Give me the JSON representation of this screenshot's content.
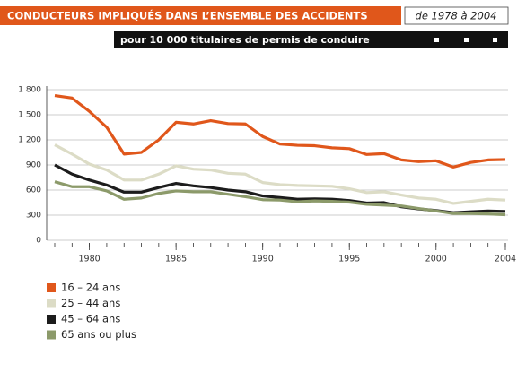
{
  "chart_data": {
    "type": "line",
    "title": "CONDUCTEURS IMPLIQUÉS DANS L’ENSEMBLE DES ACCIDENTS",
    "subtitle": "de 1978 à 2004",
    "caption": "pour 10 000 titulaires de permis de conduire",
    "x": [
      1978,
      1979,
      1980,
      1981,
      1982,
      1983,
      1984,
      1985,
      1986,
      1987,
      1988,
      1989,
      1990,
      1991,
      1992,
      1993,
      1994,
      1995,
      1996,
      1997,
      1998,
      1999,
      2000,
      2001,
      2002,
      2003,
      2004
    ],
    "xlim": [
      1978,
      2004
    ],
    "xticks": [
      1980,
      1985,
      1990,
      1995,
      2000,
      2004
    ],
    "ylim": [
      0,
      1800
    ],
    "yticks": [
      0,
      300,
      600,
      900,
      {
        "value": 1200,
        "label": "1 200"
      },
      {
        "value": 1500,
        "label": "1 500"
      },
      {
        "value": 1800,
        "label": "1 800"
      }
    ],
    "grid": true,
    "series": [
      {
        "name": "16 – 24 ans",
        "color": "#e0571b",
        "values": [
          1730,
          1700,
          1540,
          1350,
          1030,
          1050,
          1200,
          1410,
          1390,
          1430,
          1395,
          1390,
          1240,
          1150,
          1135,
          1130,
          1105,
          1095,
          1025,
          1035,
          960,
          940,
          950,
          875,
          930,
          960,
          965
        ]
      },
      {
        "name": "25 – 44 ans",
        "color": "#dcdcc6",
        "values": [
          1140,
          1030,
          910,
          840,
          720,
          720,
          790,
          890,
          850,
          840,
          800,
          790,
          690,
          665,
          655,
          650,
          645,
          615,
          570,
          580,
          540,
          505,
          490,
          440,
          465,
          490,
          480
        ]
      },
      {
        "name": "45 – 64 ans",
        "color": "#1c1c1c",
        "values": [
          900,
          790,
          720,
          660,
          575,
          575,
          630,
          680,
          650,
          630,
          600,
          580,
          530,
          510,
          490,
          495,
          490,
          475,
          445,
          450,
          400,
          375,
          355,
          330,
          340,
          350,
          345
        ]
      },
      {
        "name": "65 ans ou plus",
        "color": "#8c9a6a",
        "values": [
          700,
          640,
          640,
          590,
          490,
          505,
          560,
          590,
          580,
          580,
          550,
          520,
          485,
          480,
          460,
          470,
          465,
          455,
          430,
          420,
          410,
          380,
          350,
          320,
          320,
          315,
          305
        ]
      }
    ]
  }
}
